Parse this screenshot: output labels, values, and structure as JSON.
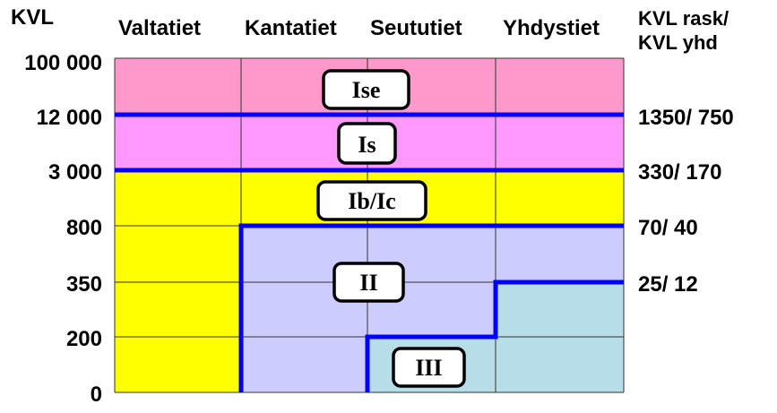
{
  "axis_title_left": "KVL",
  "axis_title_right_line1": "KVL rask/",
  "axis_title_right_line2": "KVL yhd",
  "columns": [
    "Valtatiet",
    "Kantatiet",
    "Seututiet",
    "Yhdystiet"
  ],
  "y_ticks": [
    "100 000",
    "12 000",
    "3 000",
    "800",
    "350",
    "200",
    "0"
  ],
  "right_ticks": [
    {
      "level": "12 000",
      "label": "1350/ 750"
    },
    {
      "level": "3 000",
      "label": "330/ 170"
    },
    {
      "level": "800",
      "label": "70/ 40"
    },
    {
      "level": "350",
      "label": "25/ 12"
    }
  ],
  "classes": [
    {
      "label": "Ise",
      "color": "#ff99cc"
    },
    {
      "label": "Is",
      "color": "#ff99ff"
    },
    {
      "label": "Ib/Ic",
      "color": "#ffff00"
    },
    {
      "label": "II",
      "color": "#ccccff"
    },
    {
      "label": "III",
      "color": "#b7dee8"
    }
  ],
  "boundary_color": "#0000ff"
}
